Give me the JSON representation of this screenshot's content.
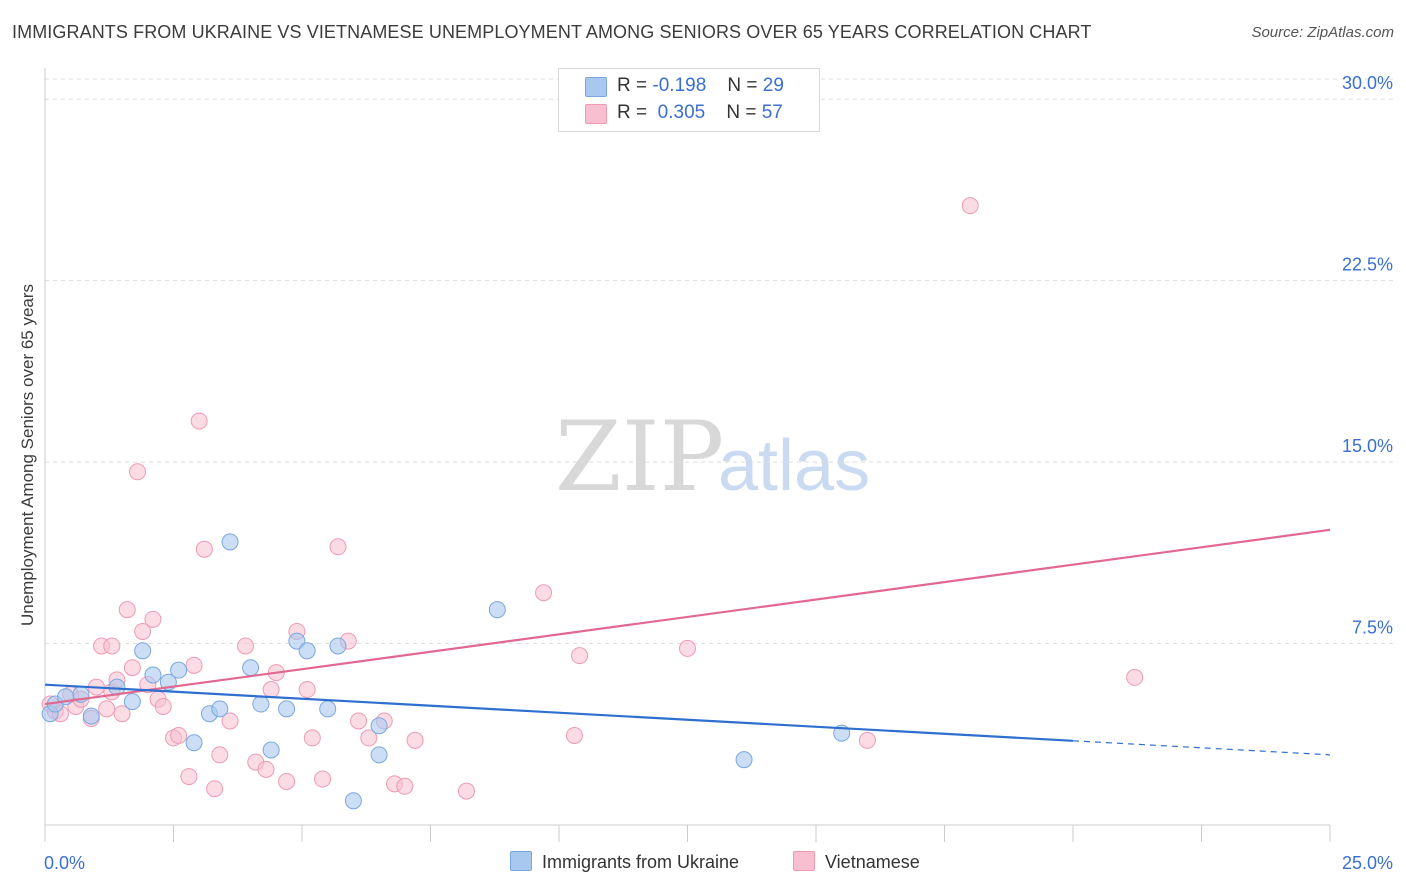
{
  "title": "IMMIGRANTS FROM UKRAINE VS VIETNAMESE UNEMPLOYMENT AMONG SENIORS OVER 65 YEARS CORRELATION CHART",
  "source": "Source: ZipAtlas.com",
  "watermark": {
    "zip": "ZIP",
    "atlas": "atlas"
  },
  "legend_top": [
    {
      "r_label": "R =",
      "r_value": "-0.198",
      "n_label": "N =",
      "n_value": "29"
    },
    {
      "r_label": "R =",
      "r_value": "0.305",
      "n_label": "N =",
      "n_value": "57"
    }
  ],
  "legend_bottom": [
    "Immigrants from Ukraine",
    "Vietnamese"
  ],
  "colors": {
    "ukraine_fill": "#a9c8f0",
    "ukraine_stroke": "#7aa7df",
    "ukraine_line": "#2e6fcf",
    "viet_fill": "#f7bfd0",
    "viet_stroke": "#ee9ab5",
    "viet_line": "#e2688f",
    "tick_label": "#3a6fd0",
    "grid": "#dddddd"
  },
  "chart_data": {
    "type": "scatter",
    "title": "IMMIGRANTS FROM UKRAINE VS VIETNAMESE UNEMPLOYMENT AMONG SENIORS OVER 65 YEARS CORRELATION CHART",
    "xlabel": "",
    "ylabel": "Unemployment Among Seniors over 65 years",
    "xlim": [
      0,
      25
    ],
    "ylim": [
      0,
      31
    ],
    "x_tick_labels": [
      "0.0%",
      "25.0%"
    ],
    "y_ticks": [
      7.5,
      15.0,
      22.5,
      30.0
    ],
    "y_tick_labels": [
      "7.5%",
      "15.0%",
      "22.5%",
      "30.0%"
    ],
    "grid": true,
    "legend_position": "top-center",
    "series": [
      {
        "name": "Immigrants from Ukraine",
        "r": -0.198,
        "n": 29,
        "trend": {
          "x0": 0,
          "y0": 5.8,
          "x1": 25,
          "y1": 2.9,
          "solid_until": 20
        },
        "points": [
          [
            0.1,
            4.6
          ],
          [
            0.2,
            5.0
          ],
          [
            0.4,
            5.3
          ],
          [
            0.7,
            5.4
          ],
          [
            0.9,
            4.5
          ],
          [
            1.4,
            5.7
          ],
          [
            1.7,
            5.1
          ],
          [
            1.9,
            7.2
          ],
          [
            2.1,
            6.2
          ],
          [
            2.4,
            5.9
          ],
          [
            2.6,
            6.4
          ],
          [
            2.9,
            3.4
          ],
          [
            3.2,
            4.6
          ],
          [
            3.4,
            4.8
          ],
          [
            3.6,
            11.7
          ],
          [
            4.0,
            6.5
          ],
          [
            4.2,
            5.0
          ],
          [
            4.4,
            3.1
          ],
          [
            4.7,
            4.8
          ],
          [
            4.9,
            7.6
          ],
          [
            5.1,
            7.2
          ],
          [
            5.5,
            4.8
          ],
          [
            5.7,
            7.4
          ],
          [
            6.0,
            1.0
          ],
          [
            6.5,
            4.1
          ],
          [
            6.5,
            2.9
          ],
          [
            8.8,
            8.9
          ],
          [
            13.6,
            2.7
          ],
          [
            15.5,
            3.8
          ]
        ]
      },
      {
        "name": "Vietnamese",
        "r": 0.305,
        "n": 57,
        "trend": {
          "x0": 0,
          "y0": 5.0,
          "x1": 25,
          "y1": 12.2
        },
        "points": [
          [
            0.1,
            5.0
          ],
          [
            0.2,
            4.7
          ],
          [
            0.3,
            4.6
          ],
          [
            0.5,
            5.4
          ],
          [
            0.6,
            4.9
          ],
          [
            0.7,
            5.2
          ],
          [
            0.9,
            4.4
          ],
          [
            1.0,
            5.7
          ],
          [
            1.1,
            7.4
          ],
          [
            1.2,
            4.8
          ],
          [
            1.3,
            5.5
          ],
          [
            1.3,
            7.4
          ],
          [
            1.4,
            6.0
          ],
          [
            1.5,
            4.6
          ],
          [
            1.6,
            8.9
          ],
          [
            1.7,
            6.5
          ],
          [
            1.8,
            14.6
          ],
          [
            1.9,
            8.0
          ],
          [
            2.0,
            5.8
          ],
          [
            2.1,
            8.5
          ],
          [
            2.2,
            5.2
          ],
          [
            2.3,
            4.9
          ],
          [
            2.5,
            3.6
          ],
          [
            2.6,
            3.7
          ],
          [
            2.8,
            2.0
          ],
          [
            2.9,
            6.6
          ],
          [
            3.0,
            16.7
          ],
          [
            3.1,
            11.4
          ],
          [
            3.3,
            1.5
          ],
          [
            3.4,
            2.9
          ],
          [
            3.6,
            4.3
          ],
          [
            3.9,
            7.4
          ],
          [
            4.1,
            2.6
          ],
          [
            4.3,
            2.3
          ],
          [
            4.4,
            5.6
          ],
          [
            4.5,
            6.3
          ],
          [
            4.7,
            1.8
          ],
          [
            4.9,
            8.0
          ],
          [
            5.1,
            5.6
          ],
          [
            5.2,
            3.6
          ],
          [
            5.4,
            1.9
          ],
          [
            5.7,
            11.5
          ],
          [
            5.9,
            7.6
          ],
          [
            6.1,
            4.3
          ],
          [
            6.3,
            3.6
          ],
          [
            6.6,
            4.3
          ],
          [
            6.8,
            1.7
          ],
          [
            7.0,
            1.6
          ],
          [
            7.2,
            3.5
          ],
          [
            9.7,
            9.6
          ],
          [
            10.3,
            3.7
          ],
          [
            10.4,
            7.0
          ],
          [
            12.5,
            7.3
          ],
          [
            18.0,
            25.6
          ],
          [
            21.2,
            6.1
          ],
          [
            16.0,
            3.5
          ],
          [
            8.2,
            1.4
          ]
        ]
      }
    ]
  }
}
